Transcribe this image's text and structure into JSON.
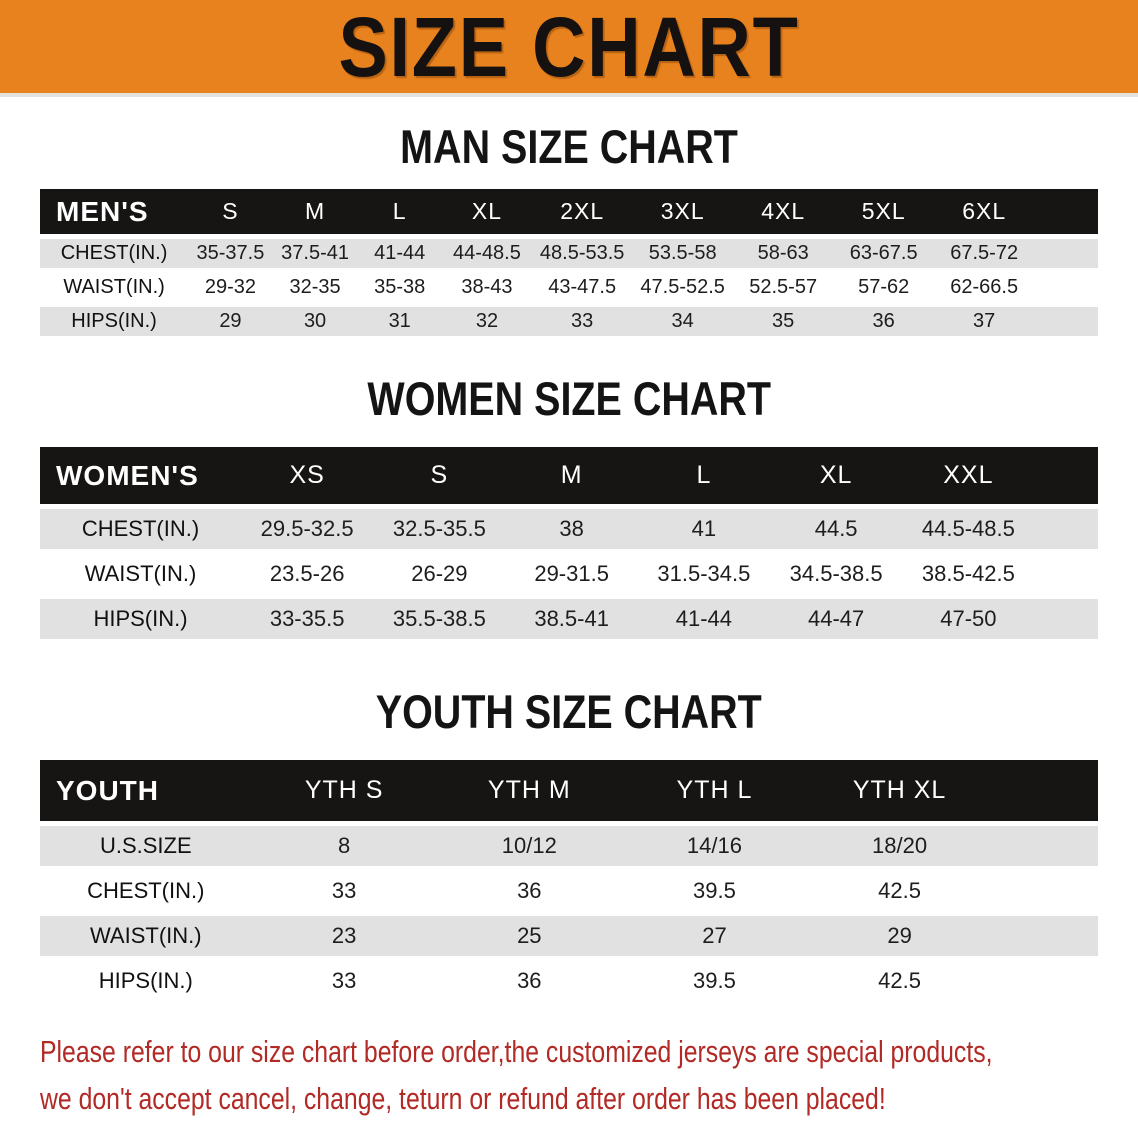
{
  "banner": {
    "title": "SIZE CHART",
    "bg": "#E8821E"
  },
  "sections": [
    {
      "heading": "MAN SIZE CHART",
      "label": "MEN'S",
      "columns": [
        "S",
        "M",
        "L",
        "XL",
        "2XL",
        "3XL",
        "4XL",
        "5XL",
        "6XL"
      ],
      "rows": [
        {
          "label": "CHEST(IN.)",
          "values": [
            "35-37.5",
            "37.5-41",
            "41-44",
            "44-48.5",
            "48.5-53.5",
            "53.5-58",
            "58-63",
            "63-67.5",
            "67.5-72"
          ]
        },
        {
          "label": "WAIST(IN.)",
          "values": [
            "29-32",
            "32-35",
            "35-38",
            "38-43",
            "43-47.5",
            "47.5-52.5",
            "52.5-57",
            "57-62",
            "62-66.5"
          ]
        },
        {
          "label": "HIPS(IN.)",
          "values": [
            "29",
            "30",
            "31",
            "32",
            "33",
            "34",
            "35",
            "36",
            "37"
          ]
        }
      ]
    },
    {
      "heading": "WOMEN SIZE CHART",
      "label": "WOMEN'S",
      "columns": [
        "XS",
        "S",
        "M",
        "L",
        "XL",
        "XXL"
      ],
      "rows": [
        {
          "label": "CHEST(IN.)",
          "values": [
            "29.5-32.5",
            "32.5-35.5",
            "38",
            "41",
            "44.5",
            "44.5-48.5"
          ]
        },
        {
          "label": "WAIST(IN.)",
          "values": [
            "23.5-26",
            "26-29",
            "29-31.5",
            "31.5-34.5",
            "34.5-38.5",
            "38.5-42.5"
          ]
        },
        {
          "label": "HIPS(IN.)",
          "values": [
            "33-35.5",
            "35.5-38.5",
            "38.5-41",
            "41-44",
            "44-47",
            "47-50"
          ]
        }
      ]
    },
    {
      "heading": "YOUTH SIZE CHART",
      "label": "YOUTH",
      "columns": [
        "YTH S",
        "YTH M",
        "YTH L",
        "YTH XL"
      ],
      "rows": [
        {
          "label": "U.S.SIZE",
          "values": [
            "8",
            "10/12",
            "14/16",
            "18/20"
          ]
        },
        {
          "label": "CHEST(IN.)",
          "values": [
            "33",
            "36",
            "39.5",
            "42.5"
          ]
        },
        {
          "label": "WAIST(IN.)",
          "values": [
            "23",
            "25",
            "27",
            "29"
          ]
        },
        {
          "label": "HIPS(IN.)",
          "values": [
            "33",
            "36",
            "39.5",
            "42.5"
          ]
        }
      ]
    }
  ],
  "footer": {
    "color": "#B22A25",
    "line1": "Please refer to our size chart before order,the customized jerseys are special products,",
    "line2": "we don't accept cancel, change, teturn or refund after order has been placed!"
  }
}
